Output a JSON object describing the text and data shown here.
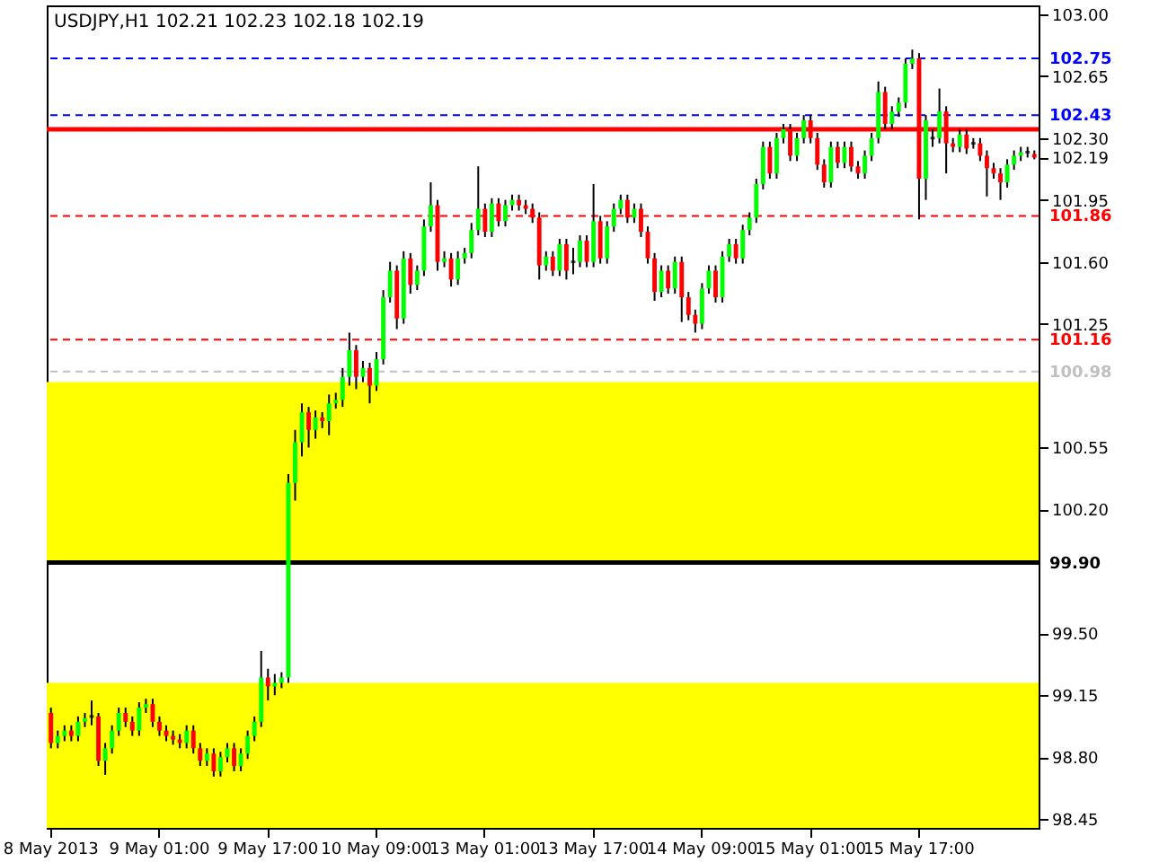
{
  "chart_data": {
    "type": "candlestick",
    "title": "USDJPY,H1  102.21 102.23 102.18 102.19",
    "categories": [
      "8 May 2013",
      null,
      null,
      null,
      null,
      null,
      null,
      null,
      null,
      null,
      null,
      null,
      null,
      null,
      null,
      null,
      "9 May 01:00",
      null,
      null,
      null,
      null,
      null,
      null,
      null,
      null,
      null,
      null,
      null,
      null,
      null,
      null,
      null,
      "9 May 17:00",
      null,
      null,
      null,
      null,
      null,
      null,
      null,
      null,
      null,
      null,
      null,
      null,
      null,
      null,
      null,
      "10 May 09:00",
      null,
      null,
      null,
      null,
      null,
      null,
      null,
      null,
      null,
      null,
      null,
      null,
      null,
      null,
      null,
      "13 May 01:00",
      null,
      null,
      null,
      null,
      null,
      null,
      null,
      null,
      null,
      null,
      null,
      null,
      null,
      null,
      null,
      "13 May 17:00",
      null,
      null,
      null,
      null,
      null,
      null,
      null,
      null,
      null,
      null,
      null,
      null,
      null,
      null,
      null,
      "14 May 09:00",
      null,
      null,
      null,
      null,
      null,
      null,
      null,
      null,
      null,
      null,
      null,
      null,
      null,
      null,
      null,
      "15 May 01:00",
      null,
      null,
      null,
      null,
      null,
      null,
      null,
      null,
      null,
      null,
      null,
      null,
      null,
      null,
      null,
      "15 May 17:00",
      null,
      null,
      null,
      null,
      null,
      null,
      null,
      null,
      null,
      null,
      null,
      null,
      null,
      null,
      null,
      null,
      null
    ],
    "ohlc": [
      [
        99.05,
        99.08,
        98.85,
        98.88
      ],
      [
        98.88,
        98.95,
        98.85,
        98.92
      ],
      [
        98.92,
        98.98,
        98.89,
        98.95
      ],
      [
        98.95,
        98.98,
        98.89,
        98.92
      ],
      [
        98.92,
        99.03,
        98.89,
        99.0
      ],
      [
        99.0,
        99.05,
        98.97,
        99.02
      ],
      [
        99.03,
        99.12,
        98.98,
        99.03
      ],
      [
        99.03,
        99.05,
        98.75,
        98.78
      ],
      [
        98.78,
        98.88,
        98.7,
        98.85
      ],
      [
        98.85,
        98.98,
        98.82,
        98.95
      ],
      [
        98.95,
        99.08,
        98.92,
        99.05
      ],
      [
        99.05,
        99.08,
        98.97,
        99.0
      ],
      [
        99.0,
        99.03,
        98.92,
        98.95
      ],
      [
        98.95,
        99.11,
        98.92,
        99.08
      ],
      [
        99.08,
        99.13,
        99.05,
        99.1
      ],
      [
        99.1,
        99.13,
        98.97,
        99.0
      ],
      [
        99.0,
        99.03,
        98.92,
        98.95
      ],
      [
        98.95,
        98.98,
        98.89,
        98.92
      ],
      [
        98.92,
        98.95,
        98.87,
        98.9
      ],
      [
        98.9,
        98.93,
        98.85,
        98.88
      ],
      [
        98.88,
        98.98,
        98.85,
        98.95
      ],
      [
        98.95,
        98.98,
        98.82,
        98.85
      ],
      [
        98.85,
        98.88,
        98.75,
        98.78
      ],
      [
        98.78,
        98.85,
        98.75,
        98.82
      ],
      [
        98.82,
        98.85,
        98.69,
        98.72
      ],
      [
        98.72,
        98.83,
        98.69,
        98.8
      ],
      [
        98.8,
        98.88,
        98.77,
        98.85
      ],
      [
        98.85,
        98.88,
        98.72,
        98.75
      ],
      [
        98.75,
        98.85,
        98.72,
        98.82
      ],
      [
        98.82,
        98.95,
        98.79,
        98.92
      ],
      [
        98.92,
        99.03,
        98.89,
        99.0
      ],
      [
        99.0,
        99.4,
        98.97,
        99.25
      ],
      [
        99.25,
        99.3,
        99.12,
        99.2
      ],
      [
        99.2,
        99.27,
        99.15,
        99.22
      ],
      [
        99.22,
        99.28,
        99.19,
        99.25
      ],
      [
        99.25,
        100.4,
        99.22,
        100.35
      ],
      [
        100.35,
        100.65,
        100.25,
        100.58
      ],
      [
        100.58,
        100.8,
        100.5,
        100.75
      ],
      [
        100.75,
        100.78,
        100.55,
        100.65
      ],
      [
        100.65,
        100.76,
        100.6,
        100.72
      ],
      [
        100.72,
        100.75,
        100.66,
        100.7
      ],
      [
        100.7,
        100.85,
        100.62,
        100.8
      ],
      [
        100.8,
        100.86,
        100.77,
        100.82
      ],
      [
        100.82,
        101.0,
        100.78,
        100.95
      ],
      [
        100.95,
        101.2,
        100.9,
        101.1
      ],
      [
        101.1,
        101.13,
        100.88,
        100.95
      ],
      [
        100.95,
        101.04,
        100.92,
        101.0
      ],
      [
        101.0,
        101.03,
        100.8,
        100.9
      ],
      [
        100.9,
        101.09,
        100.87,
        101.05
      ],
      [
        101.05,
        101.44,
        101.02,
        101.4
      ],
      [
        101.4,
        101.6,
        101.37,
        101.55
      ],
      [
        101.55,
        101.58,
        101.22,
        101.28
      ],
      [
        101.28,
        101.66,
        101.25,
        101.62
      ],
      [
        101.62,
        101.65,
        101.42,
        101.47
      ],
      [
        101.47,
        101.58,
        101.44,
        101.55
      ],
      [
        101.55,
        101.84,
        101.52,
        101.8
      ],
      [
        101.8,
        102.05,
        101.77,
        101.92
      ],
      [
        101.92,
        101.95,
        101.55,
        101.6
      ],
      [
        101.6,
        101.66,
        101.57,
        101.62
      ],
      [
        101.62,
        101.65,
        101.46,
        101.5
      ],
      [
        101.5,
        101.66,
        101.47,
        101.62
      ],
      [
        101.62,
        101.68,
        101.59,
        101.65
      ],
      [
        101.65,
        101.82,
        101.62,
        101.78
      ],
      [
        101.78,
        102.14,
        101.75,
        101.9
      ],
      [
        101.9,
        101.93,
        101.74,
        101.77
      ],
      [
        101.77,
        101.96,
        101.74,
        101.93
      ],
      [
        101.93,
        101.96,
        101.8,
        101.83
      ],
      [
        101.83,
        101.95,
        101.8,
        101.92
      ],
      [
        101.92,
        101.98,
        101.89,
        101.95
      ],
      [
        101.95,
        101.98,
        101.89,
        101.92
      ],
      [
        101.92,
        101.95,
        101.87,
        101.9
      ],
      [
        101.9,
        101.93,
        101.82,
        101.85
      ],
      [
        101.85,
        101.88,
        101.5,
        101.58
      ],
      [
        101.58,
        101.66,
        101.55,
        101.63
      ],
      [
        101.63,
        101.66,
        101.52,
        101.55
      ],
      [
        101.55,
        101.73,
        101.52,
        101.7
      ],
      [
        101.7,
        101.73,
        101.5,
        101.55
      ],
      [
        101.6,
        101.68,
        101.53,
        101.6
      ],
      [
        101.6,
        101.75,
        101.57,
        101.72
      ],
      [
        101.72,
        101.75,
        101.57,
        101.6
      ],
      [
        101.6,
        102.04,
        101.57,
        101.83
      ],
      [
        101.83,
        101.86,
        101.59,
        101.62
      ],
      [
        101.62,
        101.83,
        101.59,
        101.8
      ],
      [
        101.8,
        101.93,
        101.77,
        101.9
      ],
      [
        101.9,
        101.98,
        101.87,
        101.95
      ],
      [
        101.95,
        101.98,
        101.82,
        101.85
      ],
      [
        101.85,
        101.93,
        101.82,
        101.9
      ],
      [
        101.9,
        101.93,
        101.74,
        101.77
      ],
      [
        101.77,
        101.8,
        101.59,
        101.62
      ],
      [
        101.62,
        101.65,
        101.38,
        101.43
      ],
      [
        101.43,
        101.58,
        101.4,
        101.55
      ],
      [
        101.55,
        101.58,
        101.42,
        101.45
      ],
      [
        101.45,
        101.63,
        101.42,
        101.6
      ],
      [
        101.6,
        101.63,
        101.26,
        101.4
      ],
      [
        101.4,
        101.43,
        101.27,
        101.3
      ],
      [
        101.3,
        101.33,
        101.2,
        101.25
      ],
      [
        101.25,
        101.48,
        101.22,
        101.45
      ],
      [
        101.45,
        101.58,
        101.42,
        101.55
      ],
      [
        101.55,
        101.58,
        101.37,
        101.4
      ],
      [
        101.4,
        101.66,
        101.37,
        101.63
      ],
      [
        101.63,
        101.73,
        101.6,
        101.7
      ],
      [
        101.7,
        101.73,
        101.59,
        101.62
      ],
      [
        101.62,
        101.81,
        101.59,
        101.78
      ],
      [
        101.78,
        101.88,
        101.75,
        101.85
      ],
      [
        101.85,
        102.07,
        101.82,
        102.04
      ],
      [
        102.04,
        102.28,
        102.01,
        102.25
      ],
      [
        102.25,
        102.28,
        102.07,
        102.1
      ],
      [
        102.1,
        102.33,
        102.07,
        102.3
      ],
      [
        102.3,
        102.38,
        102.27,
        102.35
      ],
      [
        102.35,
        102.38,
        102.17,
        102.2
      ],
      [
        102.2,
        102.33,
        102.17,
        102.3
      ],
      [
        102.3,
        102.43,
        102.27,
        102.4
      ],
      [
        102.4,
        102.43,
        102.27,
        102.3
      ],
      [
        102.3,
        102.33,
        102.12,
        102.15
      ],
      [
        102.15,
        102.18,
        102.02,
        102.05
      ],
      [
        102.05,
        102.28,
        102.02,
        102.25
      ],
      [
        102.25,
        102.28,
        102.13,
        102.16
      ],
      [
        102.16,
        102.28,
        102.13,
        102.25
      ],
      [
        102.25,
        102.28,
        102.11,
        102.14
      ],
      [
        102.14,
        102.17,
        102.07,
        102.1
      ],
      [
        102.1,
        102.23,
        102.07,
        102.2
      ],
      [
        102.2,
        102.33,
        102.17,
        102.3
      ],
      [
        102.3,
        102.62,
        102.27,
        102.56
      ],
      [
        102.56,
        102.59,
        102.35,
        102.38
      ],
      [
        102.38,
        102.48,
        102.35,
        102.45
      ],
      [
        102.45,
        102.53,
        102.42,
        102.5
      ],
      [
        102.5,
        102.75,
        102.47,
        102.72
      ],
      [
        102.72,
        102.8,
        102.69,
        102.75
      ],
      [
        102.75,
        102.78,
        101.84,
        102.07
      ],
      [
        102.07,
        102.43,
        101.95,
        102.4
      ],
      [
        102.3,
        102.35,
        102.25,
        102.3
      ],
      [
        102.3,
        102.58,
        102.27,
        102.45
      ],
      [
        102.45,
        102.48,
        102.1,
        102.27
      ],
      [
        102.27,
        102.3,
        102.22,
        102.25
      ],
      [
        102.25,
        102.35,
        102.22,
        102.32
      ],
      [
        102.32,
        102.35,
        102.21,
        102.24
      ],
      [
        102.27,
        102.3,
        102.24,
        102.27
      ],
      [
        102.27,
        102.3,
        102.17,
        102.2
      ],
      [
        102.2,
        102.23,
        101.97,
        102.13
      ],
      [
        102.13,
        102.16,
        102.07,
        102.1
      ],
      [
        102.1,
        102.13,
        101.95,
        102.05
      ],
      [
        102.05,
        102.18,
        102.02,
        102.15
      ],
      [
        102.15,
        102.23,
        102.12,
        102.2
      ],
      [
        102.2,
        102.25,
        102.17,
        102.22
      ],
      [
        102.22,
        102.25,
        102.19,
        102.22
      ],
      [
        102.21,
        102.23,
        102.18,
        102.19
      ]
    ],
    "colors": [
      "#ff0000",
      "#00ff00",
      "#00ff00",
      "#ff0000",
      "#00ff00",
      "#00ff00",
      "#000000",
      "#ff0000",
      "#00ff00",
      "#00ff00",
      "#00ff00",
      "#ff0000",
      "#ff0000",
      "#00ff00",
      "#00ff00",
      "#ff0000",
      "#ff0000",
      "#ff0000",
      "#ff0000",
      "#ff0000",
      "#00ff00",
      "#ff0000",
      "#ff0000",
      "#00ff00",
      "#ff0000",
      "#00ff00",
      "#00ff00",
      "#ff0000",
      "#00ff00",
      "#00ff00",
      "#00ff00",
      "#00ff00",
      "#ff0000",
      "#00ff00",
      "#00ff00",
      "#00ff00",
      "#00ff00",
      "#00ff00",
      "#ff0000",
      "#00ff00",
      "#ff0000",
      "#00ff00",
      "#00ff00",
      "#00ff00",
      "#00ff00",
      "#ff0000",
      "#00ff00",
      "#ff0000",
      "#00ff00",
      "#00ff00",
      "#00ff00",
      "#ff0000",
      "#00ff00",
      "#ff0000",
      "#00ff00",
      "#00ff00",
      "#00ff00",
      "#ff0000",
      "#00ff00",
      "#ff0000",
      "#00ff00",
      "#00ff00",
      "#00ff00",
      "#00ff00",
      "#ff0000",
      "#00ff00",
      "#ff0000",
      "#00ff00",
      "#00ff00",
      "#ff0000",
      "#ff0000",
      "#ff0000",
      "#ff0000",
      "#00ff00",
      "#ff0000",
      "#00ff00",
      "#ff0000",
      "#000000",
      "#00ff00",
      "#ff0000",
      "#00ff00",
      "#ff0000",
      "#00ff00",
      "#00ff00",
      "#00ff00",
      "#ff0000",
      "#00ff00",
      "#ff0000",
      "#ff0000",
      "#ff0000",
      "#00ff00",
      "#ff0000",
      "#00ff00",
      "#ff0000",
      "#ff0000",
      "#ff0000",
      "#00ff00",
      "#00ff00",
      "#ff0000",
      "#00ff00",
      "#00ff00",
      "#ff0000",
      "#00ff00",
      "#00ff00",
      "#00ff00",
      "#00ff00",
      "#ff0000",
      "#00ff00",
      "#00ff00",
      "#ff0000",
      "#00ff00",
      "#00ff00",
      "#ff0000",
      "#ff0000",
      "#ff0000",
      "#00ff00",
      "#ff0000",
      "#00ff00",
      "#ff0000",
      "#ff0000",
      "#00ff00",
      "#00ff00",
      "#00ff00",
      "#ff0000",
      "#00ff00",
      "#00ff00",
      "#00ff00",
      "#00ff00",
      "#ff0000",
      "#00ff00",
      "#000000",
      "#00ff00",
      "#ff0000",
      "#ff0000",
      "#00ff00",
      "#ff0000",
      "#000000",
      "#ff0000",
      "#ff0000",
      "#ff0000",
      "#ff0000",
      "#00ff00",
      "#00ff00",
      "#00ff00",
      "#000000",
      "#ff0000"
    ],
    "ylim": [
      98.4,
      103.05
    ],
    "yticks": [
      {
        "value": 103,
        "label": "103.00"
      },
      {
        "value": 102.65,
        "label": "102.65"
      },
      {
        "value": 102.3,
        "label": "102.30"
      },
      {
        "value": 102.19,
        "label": "102.19"
      },
      {
        "value": 101.95,
        "label": "101.95"
      },
      {
        "value": 101.6,
        "label": "101.60"
      },
      {
        "value": 101.25,
        "label": "101.25"
      },
      {
        "value": 100.55,
        "label": "100.55"
      },
      {
        "value": 100.2,
        "label": "100.20"
      },
      {
        "value": 99.5,
        "label": "99.50"
      },
      {
        "value": 99.15,
        "label": "99.15"
      },
      {
        "value": 98.8,
        "label": "98.80"
      },
      {
        "value": 98.45,
        "label": "98.45"
      }
    ],
    "ref_lines": [
      {
        "axis": "y",
        "value": 102.75,
        "label": "102.75",
        "color": "#0000ff",
        "line_style": "dashed"
      },
      {
        "axis": "y",
        "value": 102.43,
        "label": "102.43",
        "color": "#0000ff",
        "line_style": "dashed"
      },
      {
        "axis": "y",
        "value": 102.35,
        "color": "#ff0000",
        "line_style": "solid"
      },
      {
        "axis": "y",
        "value": 101.86,
        "label": "101.86",
        "color": "#ff0000",
        "line_style": "dashed"
      },
      {
        "axis": "y",
        "value": 101.16,
        "label": "101.16",
        "color": "#ff0000",
        "line_style": "dashed"
      },
      {
        "axis": "y",
        "value": 100.98,
        "label": "100.98",
        "color": "#c0c0c0",
        "line_style": "dashed"
      },
      {
        "axis": "y",
        "value": 99.9,
        "label": "99.90",
        "color": "#000000",
        "line_style": "solid"
      }
    ],
    "bands": [
      {
        "axis": "y",
        "from": 99.9,
        "to": 100.92,
        "color": "#ffff00"
      },
      {
        "axis": "y",
        "from": 98.4,
        "to": 99.22,
        "color": "#ffff00"
      }
    ]
  }
}
